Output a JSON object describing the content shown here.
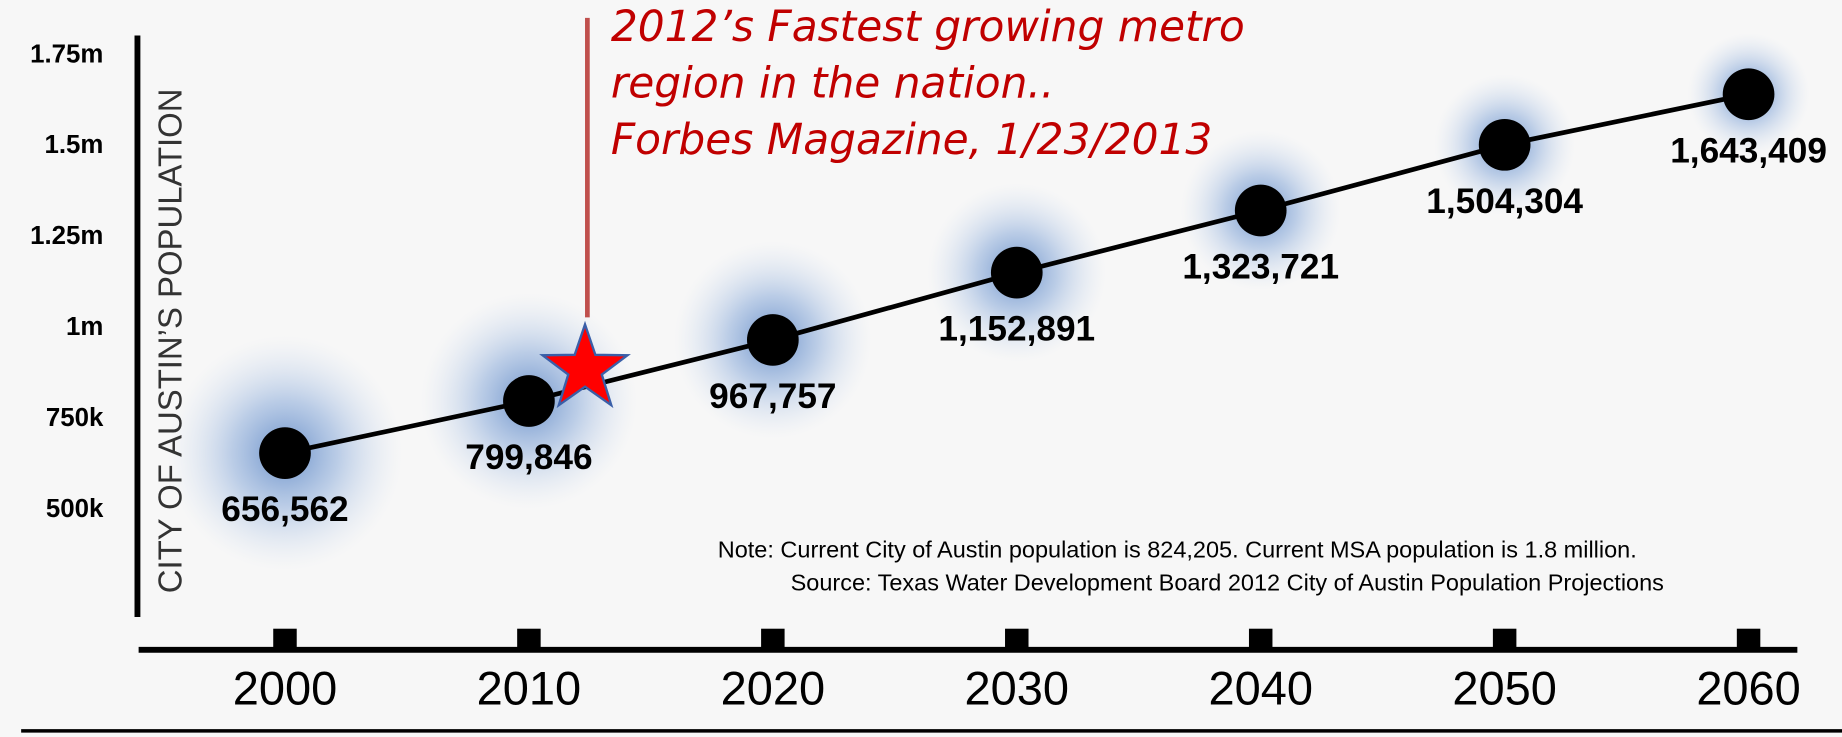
{
  "chart_data": {
    "type": "line",
    "y_label": "CITY OF AUSTIN’S POPULATION",
    "annotation": [
      "2012’s Fastest growing metro",
      "region in the nation..",
      "Forbes Magazine, 1/23/2013"
    ],
    "notes": [
      "Note: Current City of Austin population is 824,205. Current MSA population is 1.8 million.",
      "Source: Texas Water Development Board 2012 City of Austin Population Projections"
    ],
    "x": [
      2000,
      2010,
      2020,
      2030,
      2040,
      2050,
      2060
    ],
    "values": [
      656562,
      799846,
      967757,
      1152891,
      1323721,
      1504304,
      1643409
    ],
    "value_labels": [
      "656,562",
      "799,846",
      "967,757",
      "1,152,891",
      "1,323,721",
      "1,504,304",
      "1,643,409"
    ],
    "color": "#000000",
    "xlim": [
      1994,
      2062
    ],
    "xticks": [
      2000,
      2010,
      2020,
      2030,
      2040,
      2050,
      2060
    ],
    "ylim": [
      206000,
      1805000
    ],
    "yticks": [
      {
        "value": 500000,
        "label": "500k"
      },
      {
        "value": 750000,
        "label": "750k"
      },
      {
        "value": 1000000,
        "label": "1m"
      },
      {
        "value": 1250000,
        "label": "1.25m"
      },
      {
        "value": 1500000,
        "label": "1.5m"
      },
      {
        "value": 1750000,
        "label": "1.75m"
      }
    ],
    "grid": false
  }
}
